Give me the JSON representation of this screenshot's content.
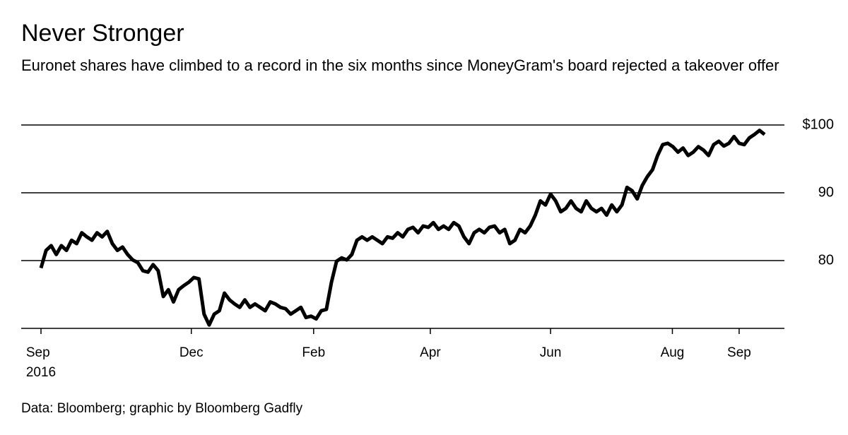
{
  "chart_data": {
    "type": "line",
    "title": "Never Stronger",
    "subtitle": "Euronet shares have climbed to a record in the six months since MoneyGram's board rejected a takeover offer",
    "source": "Data: Bloomberg; graphic by Bloomberg Gadfly",
    "color": "#000000",
    "values": [
      78.9,
      81.5,
      82.2,
      80.9,
      82.2,
      81.5,
      83.0,
      82.5,
      84.1,
      83.5,
      83.0,
      84.1,
      83.5,
      84.3,
      82.5,
      81.5,
      82.0,
      80.9,
      80.1,
      79.7,
      78.5,
      78.3,
      79.4,
      78.5,
      74.7,
      75.7,
      73.9,
      75.7,
      76.3,
      76.8,
      77.5,
      77.3,
      72.1,
      70.5,
      72.1,
      72.6,
      75.2,
      74.2,
      73.6,
      73.1,
      74.2,
      73.1,
      73.6,
      73.1,
      72.6,
      73.9,
      73.6,
      73.1,
      72.9,
      72.1,
      72.6,
      73.1,
      71.6,
      71.8,
      71.4,
      72.6,
      72.8,
      76.8,
      79.9,
      80.4,
      80.1,
      80.9,
      83.0,
      83.5,
      83.0,
      83.5,
      83.0,
      82.5,
      83.5,
      83.3,
      84.1,
      83.5,
      84.6,
      84.9,
      84.1,
      85.1,
      84.9,
      85.6,
      84.6,
      85.1,
      84.6,
      85.6,
      85.1,
      83.5,
      82.5,
      84.1,
      84.6,
      84.1,
      84.9,
      85.1,
      84.1,
      84.6,
      82.5,
      83.0,
      84.6,
      84.1,
      85.1,
      86.7,
      88.8,
      88.2,
      89.8,
      88.8,
      87.2,
      87.7,
      88.8,
      87.7,
      87.2,
      88.8,
      87.7,
      87.2,
      87.7,
      86.7,
      88.2,
      87.2,
      88.2,
      90.8,
      90.3,
      89.1,
      91.1,
      92.4,
      93.4,
      95.5,
      97.1,
      97.3,
      96.8,
      96.0,
      96.6,
      95.5,
      96.0,
      96.8,
      96.3,
      95.5,
      97.1,
      97.6,
      96.9,
      97.3,
      98.3,
      97.3,
      97.1,
      98.1,
      98.6,
      99.2,
      98.6
    ],
    "xlim": [
      0,
      142
    ],
    "xticks": [
      {
        "value": 0,
        "label": "Sep\n2016"
      },
      {
        "value": 29.5,
        "label": "Dec"
      },
      {
        "value": 53.5,
        "label": "Feb"
      },
      {
        "value": 76.4,
        "label": "Apr"
      },
      {
        "value": 100,
        "label": "Jun"
      },
      {
        "value": 123.9,
        "label": "Aug"
      },
      {
        "value": 137,
        "label": "Sep"
      }
    ],
    "ylim": [
      70,
      100
    ],
    "yticks": [
      {
        "value": 80,
        "label": "80"
      },
      {
        "value": 90,
        "label": "90"
      },
      {
        "value": 100,
        "label": "$100"
      }
    ],
    "grid": true
  }
}
